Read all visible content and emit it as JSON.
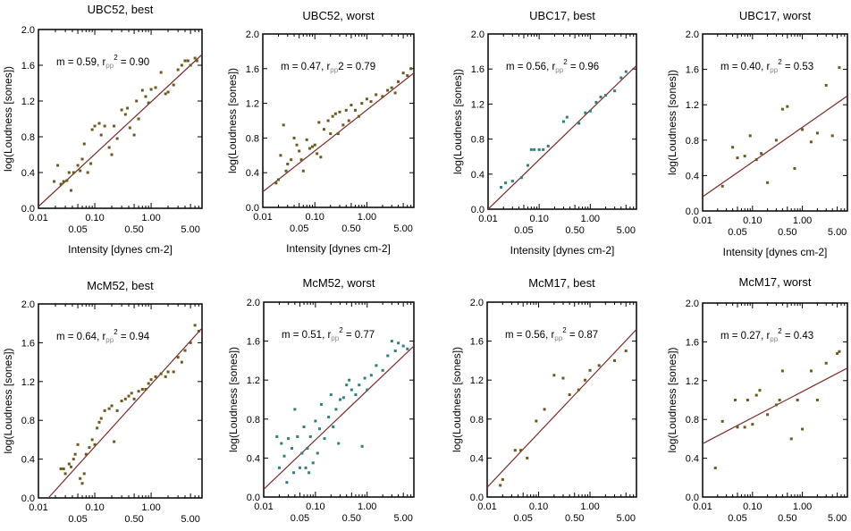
{
  "figure": {
    "shared": {
      "xlabel": "Intensity [dynes cm-2]",
      "ylabel": "log(Loudness [sones])",
      "x_ticks": [
        0.01,
        0.05,
        0.1,
        0.5,
        1.0,
        5.0
      ],
      "x_tick_labels": [
        "0.01",
        "0.05",
        "0.10",
        "0.50",
        "1.00",
        "5.00"
      ],
      "y_ticks": [
        0.0,
        0.4,
        0.8,
        1.2,
        1.6,
        2.0
      ],
      "y_tick_labels": [
        "0.0",
        "0.4",
        "0.8",
        "1.2",
        "1.6",
        "2.0"
      ],
      "x_scale": "log",
      "xlim": [
        0.01,
        8.0
      ],
      "ylim": [
        0.0,
        2.0
      ],
      "grid": false
    }
  },
  "chart_data": [
    {
      "type": "scatter",
      "title": "UBC52, best",
      "annotation": {
        "m": "m = 0.59, r",
        "sub": "pp",
        "sup": "2",
        "rest": " = 0.90"
      },
      "point_color": "#6b5a1e",
      "fit": {
        "from": [
          0.01,
          0.02
        ],
        "to": [
          8.0,
          1.72
        ]
      },
      "points": [
        [
          0.019,
          0.3
        ],
        [
          0.022,
          0.48
        ],
        [
          0.025,
          0.27
        ],
        [
          0.028,
          0.3
        ],
        [
          0.032,
          0.31
        ],
        [
          0.035,
          0.4
        ],
        [
          0.038,
          0.2
        ],
        [
          0.042,
          0.4
        ],
        [
          0.05,
          0.48
        ],
        [
          0.055,
          0.42
        ],
        [
          0.06,
          0.55
        ],
        [
          0.065,
          0.72
        ],
        [
          0.075,
          0.4
        ],
        [
          0.085,
          0.5
        ],
        [
          0.09,
          0.88
        ],
        [
          0.1,
          0.92
        ],
        [
          0.12,
          0.95
        ],
        [
          0.13,
          0.82
        ],
        [
          0.15,
          0.92
        ],
        [
          0.18,
          0.68
        ],
        [
          0.2,
          0.6
        ],
        [
          0.22,
          0.92
        ],
        [
          0.25,
          0.78
        ],
        [
          0.3,
          1.1
        ],
        [
          0.35,
          1.05
        ],
        [
          0.38,
          1.12
        ],
        [
          0.42,
          0.9
        ],
        [
          0.5,
          0.82
        ],
        [
          0.55,
          1.2
        ],
        [
          0.6,
          1.0
        ],
        [
          0.7,
          1.32
        ],
        [
          0.8,
          1.25
        ],
        [
          0.9,
          1.18
        ],
        [
          1.0,
          1.33
        ],
        [
          1.2,
          1.35
        ],
        [
          1.5,
          1.52
        ],
        [
          1.8,
          1.28
        ],
        [
          2.0,
          1.3
        ],
        [
          2.5,
          1.38
        ],
        [
          3.0,
          1.55
        ],
        [
          3.5,
          1.6
        ],
        [
          4.0,
          1.65
        ],
        [
          4.5,
          1.65
        ],
        [
          5.0,
          1.6
        ],
        [
          6.0,
          1.68
        ],
        [
          6.5,
          1.65
        ]
      ]
    },
    {
      "type": "scatter",
      "title": "UBC52, worst",
      "annotation": {
        "m": "m = 0.47, r",
        "sub": "pp",
        "sup": "",
        "rest": "2 = 0.79"
      },
      "point_color": "#6b5a1e",
      "fit": {
        "from": [
          0.01,
          0.18
        ],
        "to": [
          8.0,
          1.55
        ]
      },
      "points": [
        [
          0.018,
          0.28
        ],
        [
          0.02,
          0.32
        ],
        [
          0.022,
          0.6
        ],
        [
          0.025,
          0.95
        ],
        [
          0.028,
          0.42
        ],
        [
          0.03,
          0.5
        ],
        [
          0.035,
          0.55
        ],
        [
          0.04,
          0.8
        ],
        [
          0.045,
          0.72
        ],
        [
          0.05,
          0.65
        ],
        [
          0.055,
          0.55
        ],
        [
          0.06,
          0.42
        ],
        [
          0.07,
          0.78
        ],
        [
          0.08,
          0.68
        ],
        [
          0.09,
          0.7
        ],
        [
          0.1,
          0.72
        ],
        [
          0.11,
          0.62
        ],
        [
          0.12,
          0.98
        ],
        [
          0.13,
          0.58
        ],
        [
          0.15,
          0.9
        ],
        [
          0.18,
          1.0
        ],
        [
          0.2,
          0.85
        ],
        [
          0.22,
          1.05
        ],
        [
          0.25,
          1.08
        ],
        [
          0.28,
          0.85
        ],
        [
          0.3,
          1.1
        ],
        [
          0.35,
          0.95
        ],
        [
          0.4,
          1.12
        ],
        [
          0.45,
          1.0
        ],
        [
          0.5,
          1.18
        ],
        [
          0.6,
          1.12
        ],
        [
          0.7,
          1.05
        ],
        [
          0.8,
          1.2
        ],
        [
          1.0,
          1.25
        ],
        [
          1.2,
          1.22
        ],
        [
          1.5,
          1.3
        ],
        [
          2.0,
          1.28
        ],
        [
          2.5,
          1.35
        ],
        [
          3.0,
          1.38
        ],
        [
          3.5,
          1.32
        ],
        [
          4.0,
          1.45
        ],
        [
          5.0,
          1.55
        ],
        [
          6.0,
          1.52
        ],
        [
          7.0,
          1.6
        ]
      ]
    },
    {
      "type": "scatter",
      "title": "UBC17, best",
      "annotation": {
        "m": "m = 0.56, r",
        "sub": "pp",
        "sup": "2",
        "rest": " = 0.96"
      },
      "point_color": "#2f7f7a",
      "fit": {
        "from": [
          0.01,
          0.0
        ],
        "to": [
          8.0,
          1.64
        ]
      },
      "points": [
        [
          0.018,
          0.25
        ],
        [
          0.022,
          0.3
        ],
        [
          0.03,
          0.32
        ],
        [
          0.045,
          0.36
        ],
        [
          0.06,
          0.5
        ],
        [
          0.07,
          0.68
        ],
        [
          0.08,
          0.68
        ],
        [
          0.1,
          0.68
        ],
        [
          0.12,
          0.68
        ],
        [
          0.15,
          0.72
        ],
        [
          0.3,
          1.0
        ],
        [
          0.35,
          1.05
        ],
        [
          0.6,
          0.98
        ],
        [
          0.8,
          1.1
        ],
        [
          1.0,
          1.12
        ],
        [
          1.3,
          1.22
        ],
        [
          1.6,
          1.28
        ],
        [
          2.0,
          1.3
        ],
        [
          3.0,
          1.35
        ],
        [
          4.0,
          1.5
        ],
        [
          5.0,
          1.57
        ]
      ]
    },
    {
      "type": "scatter",
      "title": "UBC17, worst",
      "annotation": {
        "m": "m = 0.40, r",
        "sub": "pp",
        "sup": "2",
        "rest": " = 0.53"
      },
      "point_color": "#6b5a1e",
      "fit": {
        "from": [
          0.01,
          0.16
        ],
        "to": [
          8.0,
          1.3
        ]
      },
      "points": [
        [
          0.025,
          0.28
        ],
        [
          0.04,
          0.72
        ],
        [
          0.05,
          0.6
        ],
        [
          0.07,
          0.62
        ],
        [
          0.09,
          0.85
        ],
        [
          0.12,
          0.58
        ],
        [
          0.15,
          0.65
        ],
        [
          0.2,
          0.32
        ],
        [
          0.3,
          0.8
        ],
        [
          0.4,
          1.15
        ],
        [
          0.5,
          1.18
        ],
        [
          0.7,
          0.48
        ],
        [
          1.0,
          0.92
        ],
        [
          1.5,
          0.78
        ],
        [
          2.0,
          0.88
        ],
        [
          3.0,
          1.42
        ],
        [
          4.0,
          0.85
        ],
        [
          5.5,
          1.62
        ]
      ]
    },
    {
      "type": "scatter",
      "title": "McM52, best",
      "annotation": {
        "m": "m = 0.64, r",
        "sub": "pp",
        "sup": "2",
        "rest": " = 0.94"
      },
      "point_color": "#6b5a1e",
      "fit": {
        "from": [
          0.015,
          0.0
        ],
        "to": [
          8.0,
          1.75
        ]
      },
      "points": [
        [
          0.025,
          0.3
        ],
        [
          0.028,
          0.3
        ],
        [
          0.03,
          0.25
        ],
        [
          0.035,
          0.35
        ],
        [
          0.038,
          0.32
        ],
        [
          0.042,
          0.4
        ],
        [
          0.045,
          0.45
        ],
        [
          0.05,
          0.55
        ],
        [
          0.055,
          0.2
        ],
        [
          0.06,
          0.15
        ],
        [
          0.065,
          0.25
        ],
        [
          0.07,
          0.45
        ],
        [
          0.08,
          0.52
        ],
        [
          0.09,
          0.6
        ],
        [
          0.1,
          0.55
        ],
        [
          0.11,
          0.72
        ],
        [
          0.12,
          0.78
        ],
        [
          0.13,
          0.82
        ],
        [
          0.15,
          0.9
        ],
        [
          0.18,
          0.92
        ],
        [
          0.2,
          0.95
        ],
        [
          0.22,
          0.58
        ],
        [
          0.25,
          0.9
        ],
        [
          0.3,
          1.0
        ],
        [
          0.35,
          1.02
        ],
        [
          0.4,
          1.05
        ],
        [
          0.45,
          1.08
        ],
        [
          0.5,
          1.02
        ],
        [
          0.6,
          1.1
        ],
        [
          0.7,
          1.12
        ],
        [
          0.8,
          1.12
        ],
        [
          0.9,
          1.18
        ],
        [
          1.0,
          1.22
        ],
        [
          1.2,
          1.25
        ],
        [
          1.5,
          1.28
        ],
        [
          1.8,
          1.25
        ],
        [
          2.0,
          1.3
        ],
        [
          2.5,
          1.3
        ],
        [
          3.0,
          1.45
        ],
        [
          3.5,
          1.4
        ],
        [
          4.0,
          1.52
        ],
        [
          5.0,
          1.6
        ],
        [
          6.0,
          1.78
        ],
        [
          7.0,
          1.72
        ]
      ]
    },
    {
      "type": "scatter",
      "title": "McM52, worst",
      "annotation": {
        "m": "m = 0.51, r",
        "sub": "pp",
        "sup": "2",
        "rest": " = 0.77"
      },
      "point_color": "#2f7f7a",
      "fit": {
        "from": [
          0.01,
          0.08
        ],
        "to": [
          8.0,
          1.55
        ]
      },
      "points": [
        [
          0.018,
          0.62
        ],
        [
          0.02,
          0.3
        ],
        [
          0.022,
          0.55
        ],
        [
          0.025,
          0.42
        ],
        [
          0.028,
          0.15
        ],
        [
          0.03,
          0.6
        ],
        [
          0.035,
          0.5
        ],
        [
          0.038,
          0.25
        ],
        [
          0.04,
          0.9
        ],
        [
          0.045,
          0.62
        ],
        [
          0.05,
          0.3
        ],
        [
          0.055,
          0.45
        ],
        [
          0.06,
          0.72
        ],
        [
          0.065,
          0.3
        ],
        [
          0.07,
          0.5
        ],
        [
          0.075,
          0.25
        ],
        [
          0.08,
          0.62
        ],
        [
          0.09,
          0.35
        ],
        [
          0.1,
          0.78
        ],
        [
          0.11,
          0.45
        ],
        [
          0.12,
          0.7
        ],
        [
          0.13,
          0.95
        ],
        [
          0.15,
          0.6
        ],
        [
          0.18,
          0.82
        ],
        [
          0.2,
          1.05
        ],
        [
          0.22,
          0.72
        ],
        [
          0.25,
          0.9
        ],
        [
          0.28,
          0.55
        ],
        [
          0.3,
          1.0
        ],
        [
          0.35,
          1.02
        ],
        [
          0.4,
          1.15
        ],
        [
          0.45,
          1.2
        ],
        [
          0.5,
          1.1
        ],
        [
          0.6,
          1.05
        ],
        [
          0.7,
          1.15
        ],
        [
          0.8,
          0.52
        ],
        [
          0.9,
          1.22
        ],
        [
          1.0,
          1.1
        ],
        [
          1.2,
          1.25
        ],
        [
          1.5,
          1.35
        ],
        [
          2.0,
          1.3
        ],
        [
          2.5,
          1.45
        ],
        [
          3.0,
          1.6
        ],
        [
          3.5,
          1.5
        ],
        [
          4.0,
          1.58
        ],
        [
          5.0,
          1.55
        ],
        [
          6.0,
          1.52
        ]
      ]
    },
    {
      "type": "scatter",
      "title": "McM17, best",
      "annotation": {
        "m": "m = 0.56, r",
        "sub": "pp",
        "sup": "2",
        "rest": " = 0.87"
      },
      "point_color": "#6b5a1e",
      "fit": {
        "from": [
          0.01,
          0.1
        ],
        "to": [
          8.0,
          1.72
        ]
      },
      "points": [
        [
          0.018,
          0.12
        ],
        [
          0.02,
          0.18
        ],
        [
          0.035,
          0.48
        ],
        [
          0.045,
          0.48
        ],
        [
          0.06,
          0.4
        ],
        [
          0.09,
          0.78
        ],
        [
          0.13,
          0.9
        ],
        [
          0.2,
          1.25
        ],
        [
          0.3,
          1.22
        ],
        [
          0.4,
          1.05
        ],
        [
          0.6,
          1.1
        ],
        [
          0.8,
          1.2
        ],
        [
          1.0,
          1.3
        ],
        [
          1.5,
          1.35
        ],
        [
          3.0,
          1.4
        ],
        [
          5.0,
          1.5
        ]
      ]
    },
    {
      "type": "scatter",
      "title": "McM17, worst",
      "annotation": {
        "m": "m = 0.27, r",
        "sub": "pp",
        "sup": "2",
        "rest": " = 0.43"
      },
      "point_color": "#6b5a1e",
      "fit": {
        "from": [
          0.01,
          0.55
        ],
        "to": [
          8.0,
          1.33
        ]
      },
      "points": [
        [
          0.018,
          0.3
        ],
        [
          0.025,
          0.78
        ],
        [
          0.045,
          1.0
        ],
        [
          0.05,
          0.72
        ],
        [
          0.07,
          0.72
        ],
        [
          0.08,
          1.0
        ],
        [
          0.1,
          0.75
        ],
        [
          0.12,
          1.05
        ],
        [
          0.14,
          1.1
        ],
        [
          0.2,
          0.85
        ],
        [
          0.3,
          0.95
        ],
        [
          0.35,
          1.0
        ],
        [
          0.4,
          1.3
        ],
        [
          0.6,
          0.6
        ],
        [
          0.8,
          1.0
        ],
        [
          1.0,
          0.7
        ],
        [
          1.5,
          1.3
        ],
        [
          2.0,
          1.0
        ],
        [
          3.0,
          1.38
        ],
        [
          5.0,
          1.48
        ],
        [
          5.5,
          1.5
        ]
      ]
    }
  ]
}
